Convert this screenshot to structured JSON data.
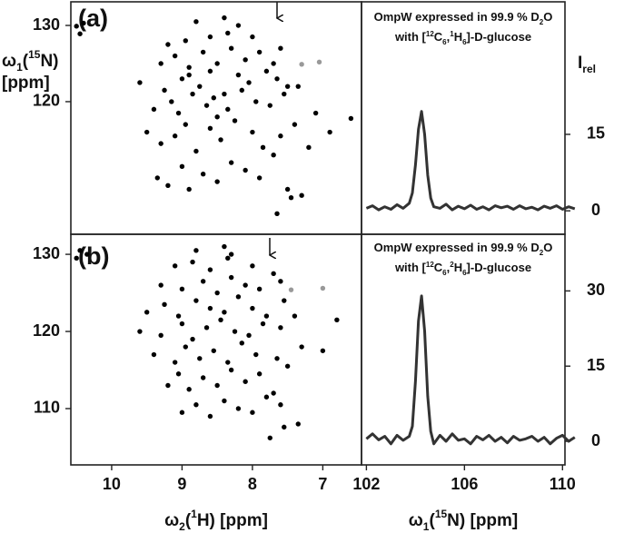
{
  "chart_data": [
    {
      "type": "scatter",
      "label": "(a)",
      "ylabel": [
        [
          {
            "text": "ω"
          },
          {
            "text": "1",
            "shift": "sub"
          },
          {
            "text": "("
          },
          {
            "text": "15",
            "shift": "sup"
          },
          {
            "text": "N)"
          }
        ],
        [
          {
            "text": "[ppm]"
          }
        ]
      ],
      "xlim": [
        10.58,
        6.45
      ],
      "ylim": [
        102.6,
        133.1
      ],
      "yticks": [
        120,
        130
      ],
      "series": [
        {
          "color": "#000000",
          "x": [
            10.5,
            10.4,
            10.45,
            7.65,
            7.45,
            7.3,
            9.35,
            9.2,
            9.0,
            8.9,
            8.7,
            8.5,
            8.3,
            8.1,
            7.9,
            7.7,
            7.5,
            7.2,
            6.9,
            6.6,
            9.5,
            9.3,
            9.1,
            8.95,
            8.8,
            8.6,
            8.45,
            8.25,
            8.0,
            7.85,
            7.6,
            7.4,
            7.1,
            9.4,
            9.15,
            9.05,
            8.85,
            8.65,
            8.55,
            8.35,
            8.15,
            7.95,
            7.75,
            7.55,
            7.35,
            9.6,
            9.25,
            9.0,
            8.75,
            8.6,
            8.4,
            8.2,
            8.05,
            7.8,
            7.65,
            7.5,
            9.3,
            9.1,
            8.9,
            8.7,
            8.5,
            8.3,
            8.1,
            7.9,
            7.7,
            9.2,
            8.95,
            8.6,
            8.35,
            8.0,
            7.6,
            8.8,
            8.4,
            8.2,
            8.9,
            8.5
          ],
          "values": [
            129.9,
            130.3,
            128.9,
            105.3,
            107.4,
            107.7,
            110,
            109,
            111.5,
            108.5,
            110.5,
            109.5,
            112,
            111,
            110,
            113,
            108.5,
            114,
            116,
            117.8,
            116,
            114.5,
            115.5,
            117,
            113.5,
            116.5,
            115,
            117.5,
            116,
            114,
            115.5,
            117,
            118.5,
            119,
            120,
            118.5,
            121,
            119.5,
            120.5,
            119,
            121.5,
            120,
            119.5,
            121,
            122,
            122.5,
            121.5,
            123,
            122,
            124,
            121,
            123.5,
            122.5,
            124,
            123,
            122,
            125,
            126,
            124.5,
            126.5,
            125,
            127,
            125.5,
            126.5,
            125,
            127.5,
            128,
            128.5,
            129,
            128.5,
            127,
            130.5,
            131,
            130,
            123.5,
            118
          ]
        },
        {
          "color": "#999999",
          "x": [
            7.3,
            7.05
          ],
          "values": [
            124.9,
            125.2
          ]
        }
      ]
    },
    {
      "type": "line",
      "ylabel": [
        [
          {
            "text": "I"
          },
          {
            "text": "rel",
            "shift": "sub"
          }
        ]
      ],
      "annotation": [
        [
          {
            "text": "OmpW expressed in 99.9 % D"
          },
          {
            "text": "2",
            "shift": "sub"
          },
          {
            "text": "O"
          }
        ],
        [
          {
            "text": "with ["
          },
          {
            "text": "12",
            "shift": "sup"
          },
          {
            "text": "C"
          },
          {
            "text": "6",
            "shift": "sub"
          },
          {
            "text": ","
          },
          {
            "text": "1",
            "shift": "sup"
          },
          {
            "text": "H"
          },
          {
            "text": "6",
            "shift": "sub"
          },
          {
            "text": "]-D-glucose"
          }
        ]
      ],
      "xlim": [
        101.8,
        110.1
      ],
      "y2lim": [
        -4.6,
        41
      ],
      "y2ticks": [
        0,
        15
      ],
      "x": [
        102,
        102.25,
        102.5,
        102.75,
        103,
        103.25,
        103.5,
        103.75,
        103.875,
        104,
        104.125,
        104.25,
        104.375,
        104.5,
        104.625,
        104.75,
        105,
        105.25,
        105.5,
        105.75,
        106,
        106.25,
        106.5,
        106.75,
        107,
        107.25,
        107.5,
        107.75,
        108,
        108.25,
        108.5,
        108.75,
        109,
        109.25,
        109.5,
        109.75,
        110,
        110.25,
        110.5
      ],
      "series": [
        {
          "color": "#333333",
          "axis": "y2",
          "values": [
            0.5,
            1.0,
            0.2,
            0.8,
            0.3,
            1.2,
            0.5,
            1.5,
            3.5,
            9,
            16,
            19.5,
            15,
            7,
            2.5,
            0.8,
            0.5,
            1.3,
            0.2,
            0.9,
            0.4,
            1.1,
            0.3,
            0.8,
            0.2,
            1.0,
            0.6,
            0.9,
            0.3,
            1.0,
            0.4,
            0.7,
            0.2,
            0.9,
            0.5,
            1.0,
            0.3,
            0.8,
            0.4
          ]
        }
      ]
    },
    {
      "type": "scatter",
      "label": "(b)",
      "xlabel": [
        [
          {
            "text": "ω"
          },
          {
            "text": "2",
            "shift": "sub"
          },
          {
            "text": "("
          },
          {
            "text": "1",
            "shift": "sup"
          },
          {
            "text": "H) [ppm]"
          }
        ]
      ],
      "xlim": [
        10.58,
        6.45
      ],
      "ylim": [
        102.7,
        132.6
      ],
      "xticks": [
        10,
        9,
        8,
        7
      ],
      "yticks": [
        110,
        120,
        130
      ],
      "series": [
        {
          "color": "#000000",
          "x": [
            10.5,
            10.45,
            10.35,
            7.75,
            7.55,
            7.35,
            9.0,
            8.8,
            8.6,
            8.4,
            8.2,
            8.0,
            7.8,
            7.6,
            9.2,
            9.05,
            8.9,
            8.7,
            8.5,
            8.3,
            8.1,
            7.9,
            7.7,
            7.5,
            9.4,
            9.1,
            8.95,
            8.75,
            8.55,
            8.35,
            8.15,
            7.95,
            7.65,
            7.3,
            7.0,
            9.6,
            9.3,
            9.0,
            8.85,
            8.65,
            8.45,
            8.25,
            8.05,
            7.85,
            7.6,
            7.4,
            9.5,
            9.25,
            9.05,
            8.8,
            8.6,
            8.4,
            8.2,
            8.0,
            7.8,
            7.55,
            6.8,
            9.3,
            9.0,
            8.7,
            8.5,
            8.3,
            8.1,
            7.9,
            7.6,
            9.1,
            8.85,
            8.6,
            8.35,
            8.0,
            7.7,
            8.8,
            8.4,
            8.3
          ],
          "values": [
            129.5,
            130.5,
            130,
            106.2,
            107.6,
            108,
            109.5,
            110.5,
            109,
            111,
            110,
            109.5,
            111.5,
            110.5,
            113,
            114.5,
            112.5,
            114,
            113,
            115,
            113.5,
            114.5,
            112,
            115.5,
            117,
            116,
            118,
            116.5,
            117.5,
            116,
            118.5,
            117,
            116.5,
            118,
            117.5,
            120,
            119.5,
            121,
            119,
            120.5,
            121.5,
            120,
            119.5,
            121,
            120.5,
            122,
            122.5,
            123.5,
            122,
            124,
            123,
            122.5,
            124.5,
            123,
            122,
            124,
            121.5,
            126,
            125.5,
            126.5,
            125,
            127,
            126,
            125.5,
            126.5,
            128.5,
            129,
            128,
            129.5,
            128.5,
            127.5,
            130.5,
            131,
            130
          ]
        },
        {
          "color": "#999999",
          "x": [
            7.45,
            7.0
          ],
          "values": [
            125.4,
            125.6
          ]
        }
      ]
    },
    {
      "type": "line",
      "annotation": [
        [
          {
            "text": "OmpW expressed in 99.9 % D"
          },
          {
            "text": "2",
            "shift": "sub"
          },
          {
            "text": "O"
          }
        ],
        [
          {
            "text": "with ["
          },
          {
            "text": "12",
            "shift": "sup"
          },
          {
            "text": "C"
          },
          {
            "text": "6",
            "shift": "sub"
          },
          {
            "text": ","
          },
          {
            "text": "2",
            "shift": "sup"
          },
          {
            "text": "H"
          },
          {
            "text": "6",
            "shift": "sub"
          },
          {
            "text": "]-D-glucose"
          }
        ]
      ],
      "xlabel": [
        [
          {
            "text": "ω"
          },
          {
            "text": "1",
            "shift": "sub"
          },
          {
            "text": "("
          },
          {
            "text": "15",
            "shift": "sup"
          },
          {
            "text": "N) [ppm]"
          }
        ]
      ],
      "xlim": [
        101.8,
        110.1
      ],
      "y2lim": [
        -4.7,
        41.3
      ],
      "xticks": [
        102,
        106,
        110
      ],
      "y2ticks": [
        0,
        15,
        30
      ],
      "x": [
        102,
        102.25,
        102.5,
        102.75,
        103,
        103.25,
        103.5,
        103.75,
        103.875,
        104,
        104.125,
        104.25,
        104.375,
        104.5,
        104.625,
        104.75,
        105,
        105.25,
        105.5,
        105.75,
        106,
        106.25,
        106.5,
        106.75,
        107,
        107.25,
        107.5,
        107.75,
        108,
        108.25,
        108.5,
        108.75,
        109,
        109.25,
        109.5,
        109.75,
        110,
        110.25,
        110.5
      ],
      "series": [
        {
          "color": "#333333",
          "axis": "y2",
          "values": [
            0.5,
            1.5,
            0.3,
            1.0,
            -0.5,
            1.2,
            0.2,
            1.0,
            3,
            12,
            24,
            29,
            22,
            9,
            2,
            -0.5,
            1.2,
            0.0,
            1.5,
            0.2,
            0.5,
            -0.5,
            1.0,
            0.3,
            1.2,
            0.0,
            0.8,
            -0.3,
            1.0,
            0.2,
            0.5,
            1.0,
            0.0,
            0.8,
            -0.5,
            0.6,
            1.2,
            0.0,
            0.8
          ]
        }
      ]
    }
  ]
}
